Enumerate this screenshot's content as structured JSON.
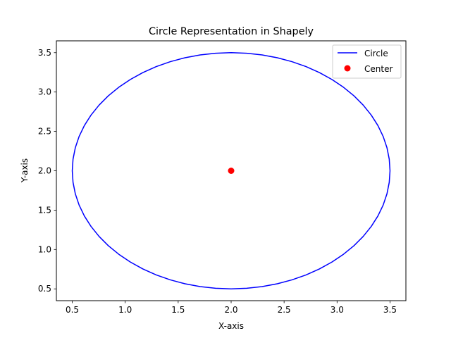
{
  "chart_data": {
    "type": "line",
    "title": "Circle Representation in Shapely",
    "xlabel": "X-axis",
    "ylabel": "Y-axis",
    "xlim": [
      0.35,
      3.65
    ],
    "ylim": [
      0.35,
      3.65
    ],
    "xticks": [
      "0.5",
      "1.0",
      "1.5",
      "2.0",
      "2.5",
      "3.0",
      "3.5"
    ],
    "yticks": [
      "0.5",
      "1.0",
      "1.5",
      "2.0",
      "2.5",
      "3.0",
      "3.5"
    ],
    "grid": false,
    "legend_position": "top-right",
    "series": [
      {
        "name": "Circle",
        "kind": "line",
        "color": "#0000ff",
        "center": [
          2.0,
          2.0
        ],
        "radius": 1.5,
        "segments": 64
      },
      {
        "name": "Center",
        "kind": "scatter",
        "color": "#ff0000",
        "x": [
          2.0
        ],
        "y": [
          2.0
        ]
      }
    ]
  }
}
